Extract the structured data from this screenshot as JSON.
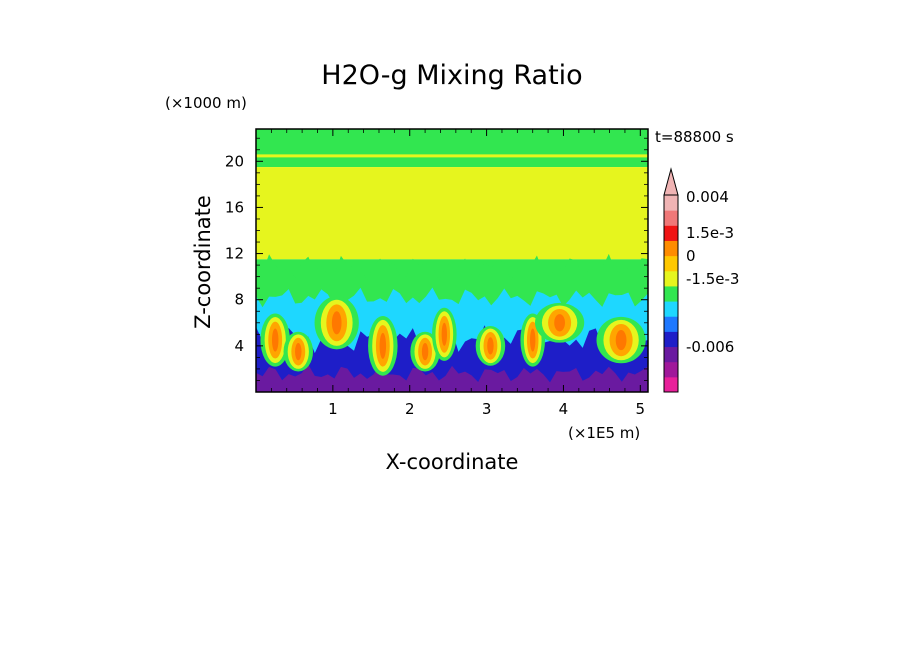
{
  "chart_data": {
    "type": "heatmap",
    "title": "H2O-g Mixing Ratio",
    "xlabel": "X-coordinate",
    "ylabel": "Z-coordinate",
    "x_unit": "(×1E5 m)",
    "y_unit": "(×1000 m)",
    "time_label": "t=88800 s",
    "xlim": [
      0,
      5.1
    ],
    "ylim": [
      0,
      22.8
    ],
    "x_ticks": [
      1,
      2,
      3,
      4,
      5
    ],
    "x_tick_labels": [
      "1",
      "2",
      "3",
      "4",
      "5"
    ],
    "y_ticks": [
      4,
      8,
      12,
      16,
      20
    ],
    "y_tick_labels": [
      "4",
      "8",
      "12",
      "16",
      "20"
    ],
    "grid": false,
    "colorbar": {
      "colors": [
        "#e8209a",
        "#a0189a",
        "#6a1aa0",
        "#1e1ec8",
        "#1e78ff",
        "#1ed7ff",
        "#32e650",
        "#e6f51e",
        "#ffc800",
        "#ff8c00",
        "#f01414",
        "#f07878",
        "#f0b4b4"
      ],
      "labels": [
        "-0.006",
        "-1.5e-3",
        "0",
        "1.5e-3",
        "0.004"
      ],
      "label_levels": [
        -0.006,
        -0.0015,
        0,
        0.0015,
        0.004
      ],
      "extend": "max"
    },
    "level_colors": {
      "deep_negative": "#6a1aa0",
      "negative_blue": "#1e1ec8",
      "cyan": "#1ed7ff",
      "green": "#32e650",
      "yellow": "#e6f51e",
      "orange": "#ffa500",
      "dark_orange": "#ff7800"
    },
    "regions": [
      {
        "name": "upper-green-band",
        "x": [
          0,
          5.1
        ],
        "z": [
          19.5,
          22.8
        ],
        "color": "green"
      },
      {
        "name": "upper-yellow-layer",
        "x": [
          0,
          5.1
        ],
        "z": [
          11.5,
          19.5
        ],
        "color": "yellow"
      },
      {
        "name": "mid-green-layer",
        "x": [
          0,
          5.1
        ],
        "z": [
          9,
          11.5
        ],
        "color": "green"
      },
      {
        "name": "mid-cyan-layer",
        "x": [
          0,
          5.1
        ],
        "z": [
          5,
          9
        ],
        "color": "cyan"
      },
      {
        "name": "lower-blue-layer",
        "x": [
          0,
          5.1
        ],
        "z": [
          1.5,
          5
        ],
        "color": "negative_blue"
      },
      {
        "name": "surface-purple-layer",
        "x": [
          0,
          5.1
        ],
        "z": [
          0,
          1.5
        ],
        "color": "deep_negative"
      }
    ],
    "plumes": [
      {
        "x": 0.25,
        "z_center": 4.5,
        "width": 0.12,
        "height": 4.0
      },
      {
        "x": 0.55,
        "z_center": 3.5,
        "width": 0.12,
        "height": 3.0
      },
      {
        "x": 1.05,
        "z_center": 6.0,
        "width": 0.18,
        "height": 4.0
      },
      {
        "x": 1.65,
        "z_center": 4.0,
        "width": 0.12,
        "height": 4.5
      },
      {
        "x": 2.2,
        "z_center": 3.5,
        "width": 0.12,
        "height": 3.0
      },
      {
        "x": 2.45,
        "z_center": 5.0,
        "width": 0.1,
        "height": 4.0
      },
      {
        "x": 3.05,
        "z_center": 4.0,
        "width": 0.12,
        "height": 3.0
      },
      {
        "x": 3.6,
        "z_center": 4.5,
        "width": 0.1,
        "height": 4.0
      },
      {
        "x": 3.95,
        "z_center": 6.0,
        "width": 0.2,
        "height": 3.0
      },
      {
        "x": 4.75,
        "z_center": 4.5,
        "width": 0.2,
        "height": 3.5
      }
    ]
  }
}
